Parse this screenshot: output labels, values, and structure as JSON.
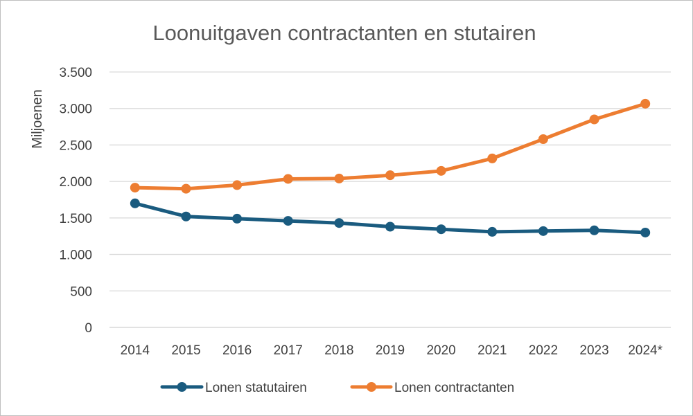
{
  "chart_data": {
    "type": "line",
    "title": "Loonuitgaven contractanten en stutairen",
    "ylabel": "Miljoenen",
    "xlabel": "",
    "ylim": [
      0,
      3500
    ],
    "yticks": [
      0,
      500,
      1000,
      1500,
      2000,
      2500,
      3000,
      3500
    ],
    "ytick_labels": [
      "0",
      "500",
      "1.000",
      "1.500",
      "2.000",
      "2.500",
      "3.000",
      "3.500"
    ],
    "categories": [
      "2014",
      "2015",
      "2016",
      "2017",
      "2018",
      "2019",
      "2020",
      "2021",
      "2022",
      "2023",
      "2024*"
    ],
    "grid": "horizontal",
    "legend_position": "bottom",
    "series": [
      {
        "name": "Lonen statutairen",
        "color": "#1a5b7f",
        "values": [
          1700,
          1520,
          1490,
          1460,
          1430,
          1380,
          1345,
          1310,
          1320,
          1330,
          1300
        ]
      },
      {
        "name": "Lonen contractanten",
        "color": "#ed7d31",
        "values": [
          1915,
          1900,
          1950,
          2035,
          2040,
          2085,
          2145,
          2315,
          2580,
          2850,
          3065
        ]
      }
    ]
  }
}
